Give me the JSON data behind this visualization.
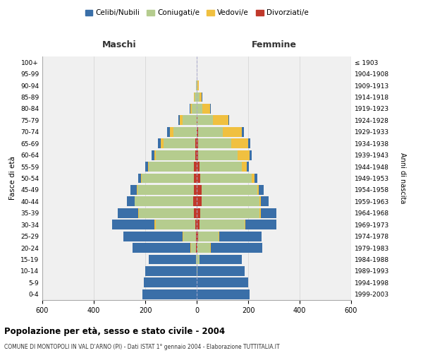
{
  "age_groups": [
    "0-4",
    "5-9",
    "10-14",
    "15-19",
    "20-24",
    "25-29",
    "30-34",
    "35-39",
    "40-44",
    "45-49",
    "50-54",
    "55-59",
    "60-64",
    "65-69",
    "70-74",
    "75-79",
    "80-84",
    "85-89",
    "90-94",
    "95-99",
    "100+"
  ],
  "birth_years": [
    "1999-2003",
    "1994-1998",
    "1989-1993",
    "1984-1988",
    "1979-1983",
    "1974-1978",
    "1969-1973",
    "1964-1968",
    "1959-1963",
    "1954-1958",
    "1949-1953",
    "1944-1948",
    "1939-1943",
    "1934-1938",
    "1929-1933",
    "1924-1928",
    "1919-1923",
    "1914-1918",
    "1909-1913",
    "1904-1908",
    "≤ 1903"
  ],
  "maschi": {
    "celibi": [
      210,
      205,
      200,
      185,
      225,
      230,
      165,
      80,
      30,
      25,
      10,
      10,
      10,
      10,
      10,
      5,
      2,
      2,
      0,
      0,
      0
    ],
    "coniugati": [
      0,
      0,
      0,
      2,
      20,
      50,
      155,
      215,
      225,
      220,
      205,
      175,
      155,
      125,
      90,
      55,
      20,
      8,
      3,
      1,
      0
    ],
    "vedovi": [
      0,
      0,
      0,
      0,
      2,
      2,
      5,
      2,
      2,
      2,
      2,
      5,
      5,
      10,
      15,
      10,
      5,
      2,
      0,
      0,
      0
    ],
    "divorziati": [
      0,
      0,
      0,
      0,
      2,
      2,
      5,
      10,
      15,
      10,
      10,
      10,
      5,
      5,
      0,
      0,
      0,
      0,
      0,
      0,
      0
    ]
  },
  "femmine": {
    "nubili": [
      205,
      200,
      185,
      165,
      200,
      165,
      120,
      60,
      30,
      20,
      10,
      8,
      8,
      8,
      8,
      5,
      2,
      2,
      1,
      0,
      0
    ],
    "coniugate": [
      0,
      0,
      2,
      10,
      50,
      80,
      175,
      230,
      225,
      215,
      200,
      165,
      155,
      130,
      95,
      60,
      22,
      10,
      4,
      1,
      0
    ],
    "vedove": [
      0,
      0,
      0,
      0,
      2,
      2,
      5,
      5,
      5,
      5,
      10,
      20,
      45,
      65,
      75,
      60,
      30,
      10,
      3,
      0,
      0
    ],
    "divorziate": [
      0,
      0,
      0,
      0,
      2,
      5,
      10,
      15,
      20,
      20,
      15,
      10,
      5,
      5,
      5,
      2,
      0,
      0,
      0,
      0,
      0
    ]
  },
  "colors": {
    "celibi": "#3a6fa8",
    "coniugati": "#b5cc8e",
    "vedovi": "#f0c040",
    "divorziati": "#c0392b"
  },
  "title": "Popolazione per età, sesso e stato civile - 2004",
  "subtitle": "COMUNE DI MONTOPOLI IN VAL D'ARNO (PI) - Dati ISTAT 1° gennaio 2004 - Elaborazione TUTTITALIA.IT",
  "xlabel_left": "Maschi",
  "xlabel_right": "Femmine",
  "ylabel_left": "Fasce di età",
  "ylabel_right": "Anni di nascita",
  "legend_labels": [
    "Celibi/Nubili",
    "Coniugati/e",
    "Vedovi/e",
    "Divorziati/e"
  ],
  "xlim": 600,
  "bg_color": "#ffffff",
  "plot_bg": "#f0f0f0",
  "grid_color": "#cccccc"
}
